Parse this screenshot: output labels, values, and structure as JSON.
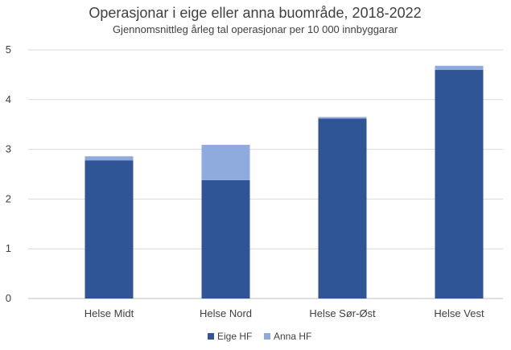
{
  "chart_data": {
    "type": "bar",
    "stacked": true,
    "title": "Operasjonar i eige eller anna buområde, 2018-2022",
    "subtitle": "Gjennomsnittleg årleg tal operasjonar per 10 000 innbyggarar",
    "categories": [
      "Helse Midt",
      "Helse Nord",
      "Helse Sør-Øst",
      "Helse Vest"
    ],
    "series": [
      {
        "name": "Eige HF",
        "values": [
          2.78,
          2.38,
          3.62,
          4.6
        ],
        "color": "#2F5597"
      },
      {
        "name": "Anna HF",
        "values": [
          0.08,
          0.71,
          0.03,
          0.08
        ],
        "color": "#8FAADC"
      }
    ],
    "ylim": [
      0,
      5
    ],
    "yticks": [
      0,
      1,
      2,
      3,
      4,
      5
    ],
    "grid": true,
    "legend_position": "bottom"
  }
}
